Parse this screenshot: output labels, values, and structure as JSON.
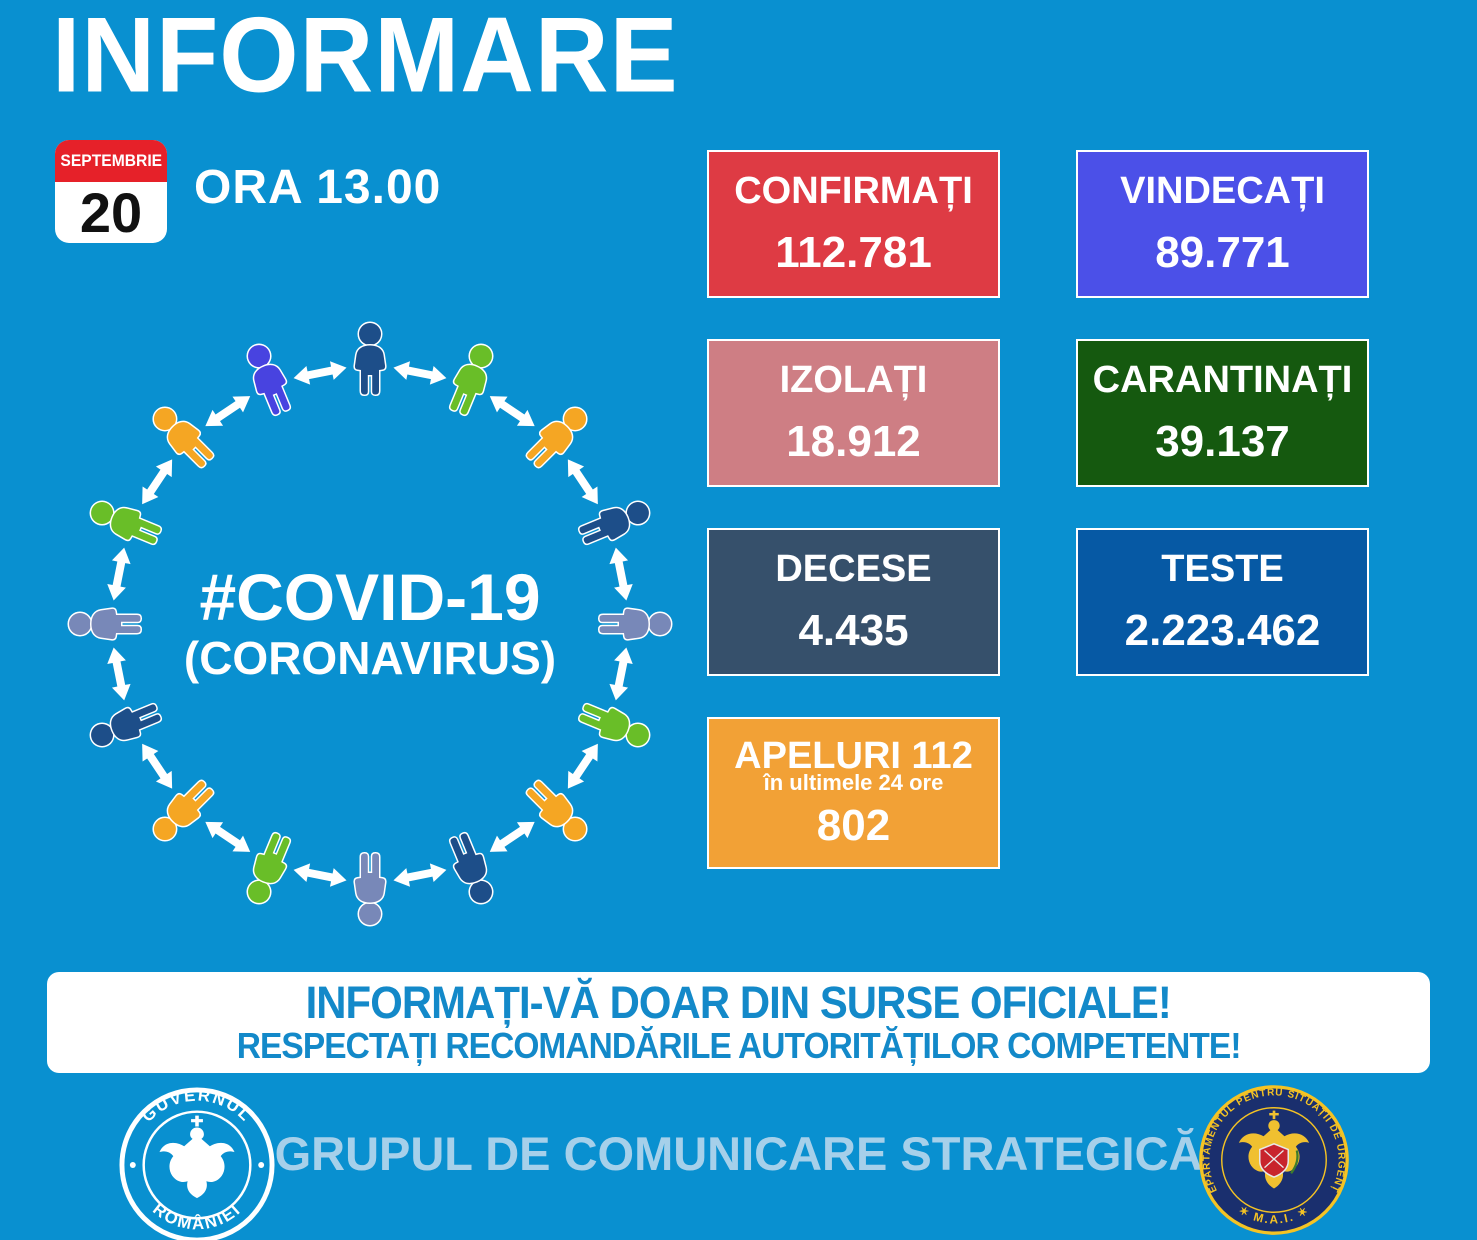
{
  "title": "INFORMARE",
  "date": {
    "month": "SEPTEMBRIE",
    "day": "20",
    "time_label": "ORA 13.00"
  },
  "center": {
    "hashtag": "#COVID-19",
    "subtitle": "(CORONAVIRUS)"
  },
  "stats": {
    "confirmati": {
      "label": "CONFIRMAȚI",
      "value": "112.781",
      "bg": "#DE3B44"
    },
    "vindecati": {
      "label": "VINDECAȚI",
      "value": "89.771",
      "bg": "#4B50E8"
    },
    "izolati": {
      "label": "IZOLAȚI",
      "value": "18.912",
      "bg": "#CE7E84"
    },
    "carantinati": {
      "label": "CARANTINAȚI",
      "value": "39.137",
      "bg": "#15590F"
    },
    "decese": {
      "label": "DECESE",
      "value": "4.435",
      "bg": "#36506B"
    },
    "teste": {
      "label": "TESTE",
      "value": "2.223.462",
      "bg": "#0659A4"
    },
    "apeluri": {
      "label": "APELURI 112",
      "sublabel": "în ultimele 24 ore",
      "value": "802",
      "bg": "#F2A136"
    }
  },
  "banner": {
    "line1": "INFORMAȚI-VĂ DOAR DIN SURSE OFICIALE!",
    "line2": "RESPECTAȚI RECOMANDĂRILE AUTORITĂȚILOR COMPETENTE!"
  },
  "footer": {
    "text": "GRUPUL DE COMUNICARE STRATEGICĂ",
    "gov_seal": {
      "top_text": "GUVERNUL",
      "bottom_text": "ROMÂNIEI"
    },
    "dsu_seal": {
      "ring_text": "DEPARTAMENTUL PENTRU SITUAȚII DE URGENȚĂ",
      "bottom_text": "M.A.I."
    }
  },
  "colors": {
    "background": "#0990D0",
    "calendar_red": "#E62129",
    "banner_text": "#1389C9",
    "footer_text": "#A6D0EA",
    "diagram_arrow": "#ffffff"
  },
  "diagram": {
    "person_colors": [
      "#1D4E89",
      "#69BE28",
      "#F5A623",
      "#1D4E89",
      "#7888B8",
      "#69BE28",
      "#F5A623",
      "#1D4E89",
      "#7888B8",
      "#69BE28",
      "#F5A623",
      "#1D4E89",
      "#7888B8",
      "#69BE28",
      "#F5A623",
      "#4843E0"
    ]
  }
}
